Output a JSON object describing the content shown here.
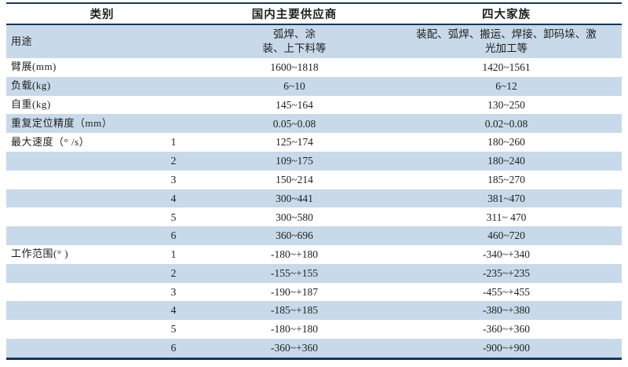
{
  "table": {
    "headers": {
      "category": "类别",
      "domestic": "国内主要供应商",
      "big_four": "四大家族"
    },
    "rows": [
      {
        "label": "用途",
        "joint": "",
        "domestic": "弧焊、涂\n装、上下料等",
        "big_four": "装配、弧焊、搬运、焊接、卸码垛、激\n光加工等"
      },
      {
        "label": "臂展(mm)",
        "joint": "",
        "domestic": "1600~1818",
        "big_four": "1420~1561"
      },
      {
        "label": "负载(kg)",
        "joint": "",
        "domestic": "6~10",
        "big_four": "6~12"
      },
      {
        "label": "自重(kg)",
        "joint": "",
        "domestic": "145~164",
        "big_four": "130~250"
      },
      {
        "label": "重复定位精度（mm）",
        "joint": "",
        "domestic": "0.05~0.08",
        "big_four": "0.02~0.08"
      },
      {
        "label": "最大速度（° /s）",
        "joint": "1",
        "domestic": "125~174",
        "big_four": "180~260"
      },
      {
        "label": "",
        "joint": "2",
        "domestic": "109~175",
        "big_four": "180~240"
      },
      {
        "label": "",
        "joint": "3",
        "domestic": "150~214",
        "big_four": "185~270"
      },
      {
        "label": "",
        "joint": "4",
        "domestic": "300~441",
        "big_four": "381~470"
      },
      {
        "label": "",
        "joint": "5",
        "domestic": "300~580",
        "big_four": "311~ 470"
      },
      {
        "label": "",
        "joint": "6",
        "domestic": "360~696",
        "big_four": "460~720"
      },
      {
        "label": "工作范围(° )",
        "joint": "1",
        "domestic": "-180~+180",
        "big_four": "-340~+340"
      },
      {
        "label": "",
        "joint": "2",
        "domestic": "-155~+155",
        "big_four": "-235~+235"
      },
      {
        "label": "",
        "joint": "3",
        "domestic": "-190~+187",
        "big_four": "-455~+455"
      },
      {
        "label": "",
        "joint": "4",
        "domestic": "-185~+185",
        "big_four": "-380~+380"
      },
      {
        "label": "",
        "joint": "5",
        "domestic": "-180~+180",
        "big_four": "-360~+360"
      },
      {
        "label": "",
        "joint": "6",
        "domestic": "-360~+360",
        "big_four": "-900~+900"
      }
    ],
    "colors": {
      "stripe_blue": "#c8d9e9",
      "rule_navy": "#17365d"
    }
  }
}
